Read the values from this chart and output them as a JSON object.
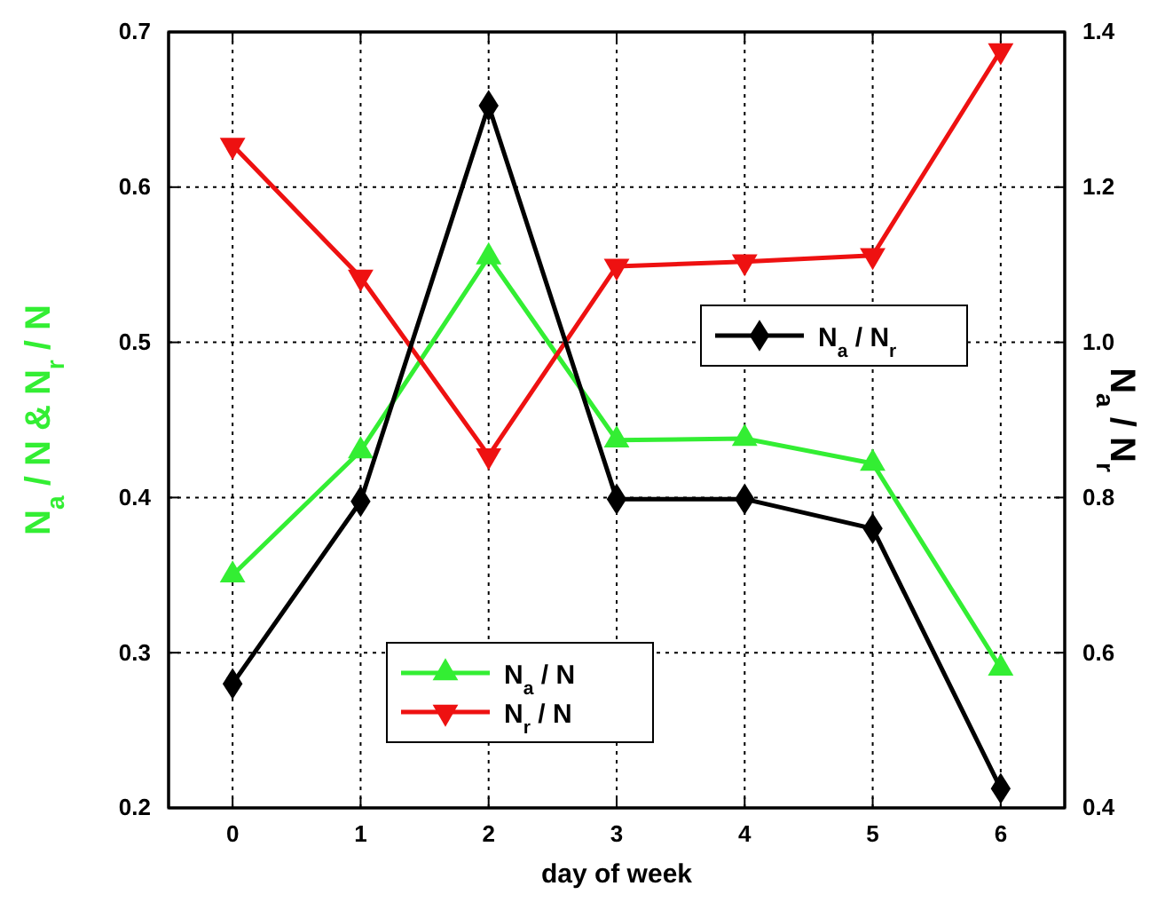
{
  "chart_data": {
    "type": "line",
    "xlabel": "day of week",
    "ylabel": "N$_{a}$ / N & N$_{r}$ / N",
    "y2label": "N$_{a}$ / N$_{r}$",
    "x": [
      0,
      1,
      2,
      3,
      4,
      5,
      6
    ],
    "xlim": [
      -0.5,
      6.5
    ],
    "xticks": [
      0,
      1,
      2,
      3,
      4,
      5,
      6
    ],
    "ylim": [
      0.2,
      0.7
    ],
    "yticks": [
      0.2,
      0.3,
      0.4,
      0.5,
      0.6,
      0.7
    ],
    "y2lim": [
      0.4,
      1.4
    ],
    "y2ticks": [
      0.4,
      0.6,
      0.8,
      {
        "value": 1.0,
        "label": "1.0"
      },
      1.2,
      1.4
    ],
    "grid": true,
    "legend": "bottom",
    "line_style": "solid",
    "series": [
      {
        "name": "N$_{a}$ / N",
        "color": "#33ee33",
        "marker": "triangle",
        "values": [
          0.35,
          0.43,
          0.555,
          0.437,
          0.438,
          0.422,
          0.29
        ]
      },
      {
        "name": "N$_{r}$ / N",
        "color": "#ee1111",
        "marker": "triangle-down",
        "values": [
          0.627,
          0.542,
          0.427,
          0.549,
          0.552,
          0.556,
          0.688
        ]
      },
      {
        "name": "N$_{a}$ / N$_{r}$",
        "color": "#000000",
        "marker": "diamond",
        "axis": "y2",
        "values": [
          0.56,
          0.795,
          1.305,
          0.798,
          0.798,
          0.76,
          0.425
        ]
      }
    ]
  }
}
